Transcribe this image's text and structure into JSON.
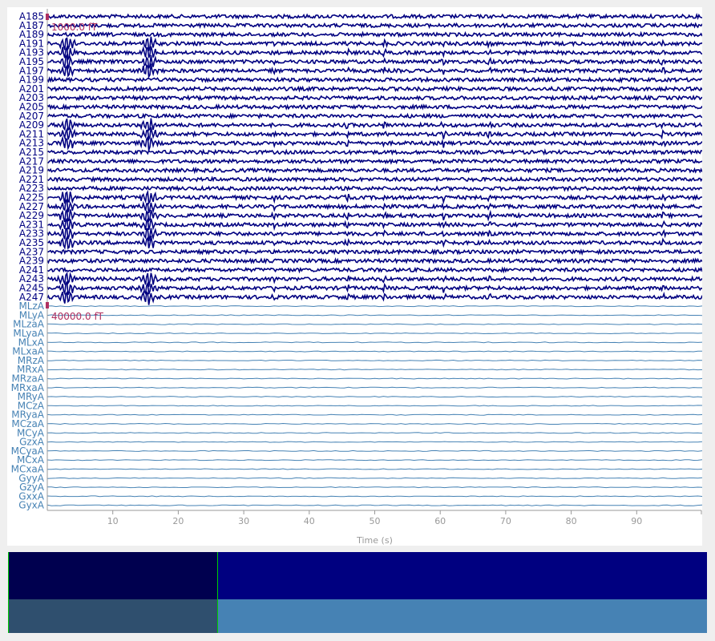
{
  "scale_bars": {
    "mag": "1000.0 fT",
    "ref": "40000.0 fT"
  },
  "axis": {
    "xlabel": "Time (s)",
    "ticks": [
      10,
      20,
      30,
      40,
      50,
      60,
      70,
      80,
      90
    ],
    "xlim": [
      0,
      100
    ]
  },
  "colors": {
    "mag_trace": "#000080",
    "ref_trace": "#4682b4",
    "scale_bar": "#b03060",
    "axis": "#999999",
    "overview_bg": "#000080",
    "overview_window": "#00004f",
    "overview_ref_bg": "#4682b4",
    "overview_ref_window": "#2f4f6e",
    "overview_window_edge": "#00cc00"
  },
  "chart_data": {
    "type": "line",
    "xlabel": "Time (s)",
    "xlim": [
      0,
      100
    ],
    "channels": [
      {
        "name": "A185",
        "group": "mag"
      },
      {
        "name": "A187",
        "group": "mag"
      },
      {
        "name": "A189",
        "group": "mag"
      },
      {
        "name": "A191",
        "group": "mag"
      },
      {
        "name": "A193",
        "group": "mag"
      },
      {
        "name": "A195",
        "group": "mag"
      },
      {
        "name": "A197",
        "group": "mag"
      },
      {
        "name": "A199",
        "group": "mag"
      },
      {
        "name": "A201",
        "group": "mag"
      },
      {
        "name": "A203",
        "group": "mag"
      },
      {
        "name": "A205",
        "group": "mag"
      },
      {
        "name": "A207",
        "group": "mag"
      },
      {
        "name": "A209",
        "group": "mag"
      },
      {
        "name": "A211",
        "group": "mag"
      },
      {
        "name": "A213",
        "group": "mag"
      },
      {
        "name": "A215",
        "group": "mag"
      },
      {
        "name": "A217",
        "group": "mag"
      },
      {
        "name": "A219",
        "group": "mag"
      },
      {
        "name": "A221",
        "group": "mag"
      },
      {
        "name": "A223",
        "group": "mag"
      },
      {
        "name": "A225",
        "group": "mag"
      },
      {
        "name": "A227",
        "group": "mag"
      },
      {
        "name": "A229",
        "group": "mag"
      },
      {
        "name": "A231",
        "group": "mag"
      },
      {
        "name": "A233",
        "group": "mag"
      },
      {
        "name": "A235",
        "group": "mag"
      },
      {
        "name": "A237",
        "group": "mag"
      },
      {
        "name": "A239",
        "group": "mag"
      },
      {
        "name": "A241",
        "group": "mag"
      },
      {
        "name": "A243",
        "group": "mag"
      },
      {
        "name": "A245",
        "group": "mag"
      },
      {
        "name": "A247",
        "group": "mag"
      },
      {
        "name": "MLzA",
        "group": "ref"
      },
      {
        "name": "MLyA",
        "group": "ref"
      },
      {
        "name": "MLzaA",
        "group": "ref"
      },
      {
        "name": "MLyaA",
        "group": "ref"
      },
      {
        "name": "MLxA",
        "group": "ref"
      },
      {
        "name": "MLxaA",
        "group": "ref"
      },
      {
        "name": "MRzA",
        "group": "ref"
      },
      {
        "name": "MRxA",
        "group": "ref"
      },
      {
        "name": "MRzaA",
        "group": "ref"
      },
      {
        "name": "MRxaA",
        "group": "ref"
      },
      {
        "name": "MRyA",
        "group": "ref"
      },
      {
        "name": "MCzA",
        "group": "ref"
      },
      {
        "name": "MRyaA",
        "group": "ref"
      },
      {
        "name": "MCzaA",
        "group": "ref"
      },
      {
        "name": "MCyA",
        "group": "ref"
      },
      {
        "name": "GzxA",
        "group": "ref"
      },
      {
        "name": "MCyaA",
        "group": "ref"
      },
      {
        "name": "MCxA",
        "group": "ref"
      },
      {
        "name": "MCxaA",
        "group": "ref"
      },
      {
        "name": "GyyA",
        "group": "ref"
      },
      {
        "name": "GzyA",
        "group": "ref"
      },
      {
        "name": "GxxA",
        "group": "ref"
      },
      {
        "name": "GyxA",
        "group": "ref"
      }
    ],
    "events_s": [
      3,
      15.5,
      34.5,
      45.8,
      51.5,
      60.5,
      67.5,
      94
    ]
  },
  "overview": {
    "window_s": [
      0,
      30
    ]
  }
}
